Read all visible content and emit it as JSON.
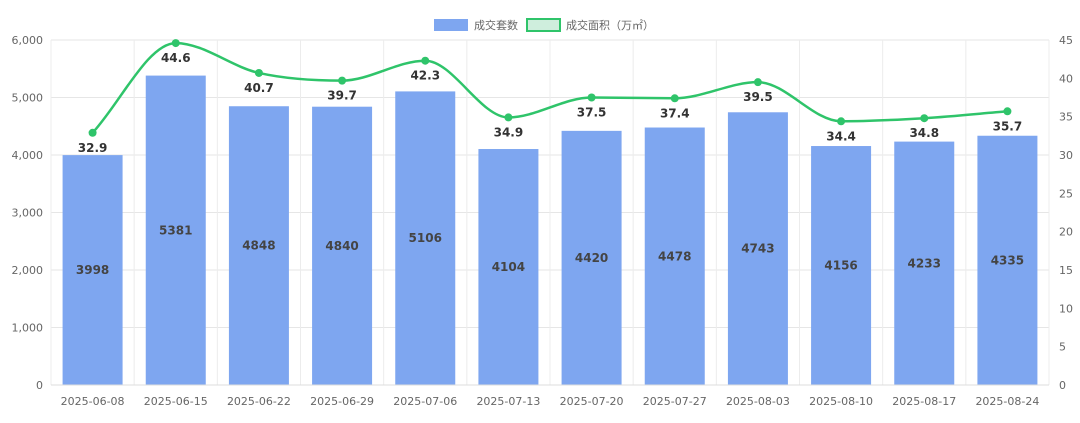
{
  "chart_data": {
    "type": "bar",
    "categories": [
      "2025-06-08",
      "2025-06-15",
      "2025-06-22",
      "2025-06-29",
      "2025-07-06",
      "2025-07-13",
      "2025-07-20",
      "2025-07-27",
      "2025-08-03",
      "2025-08-10",
      "2025-08-17",
      "2025-08-24"
    ],
    "series": [
      {
        "name": "成交套数",
        "type": "bar",
        "axis": "left",
        "color": "#7ea6f0",
        "values": [
          3998,
          5381,
          4848,
          4840,
          5106,
          4104,
          4420,
          4478,
          4743,
          4156,
          4233,
          4335
        ]
      },
      {
        "name": "成交面积（万㎡）",
        "type": "line",
        "axis": "right",
        "color": "#2fc46a",
        "values": [
          32.9,
          44.6,
          40.7,
          39.7,
          42.3,
          34.9,
          37.5,
          37.4,
          39.5,
          34.4,
          34.8,
          35.7
        ]
      }
    ],
    "y_left": {
      "min": 0,
      "max": 6000,
      "ticks": [
        "0",
        "1,000",
        "2,000",
        "3,000",
        "4,000",
        "5,000",
        "6,000"
      ]
    },
    "y_right": {
      "min": 0,
      "max": 45,
      "ticks": [
        "0",
        "5",
        "10",
        "15",
        "20",
        "25",
        "30",
        "35",
        "40",
        "45"
      ]
    },
    "grid": true,
    "legend_position": "top-center"
  }
}
